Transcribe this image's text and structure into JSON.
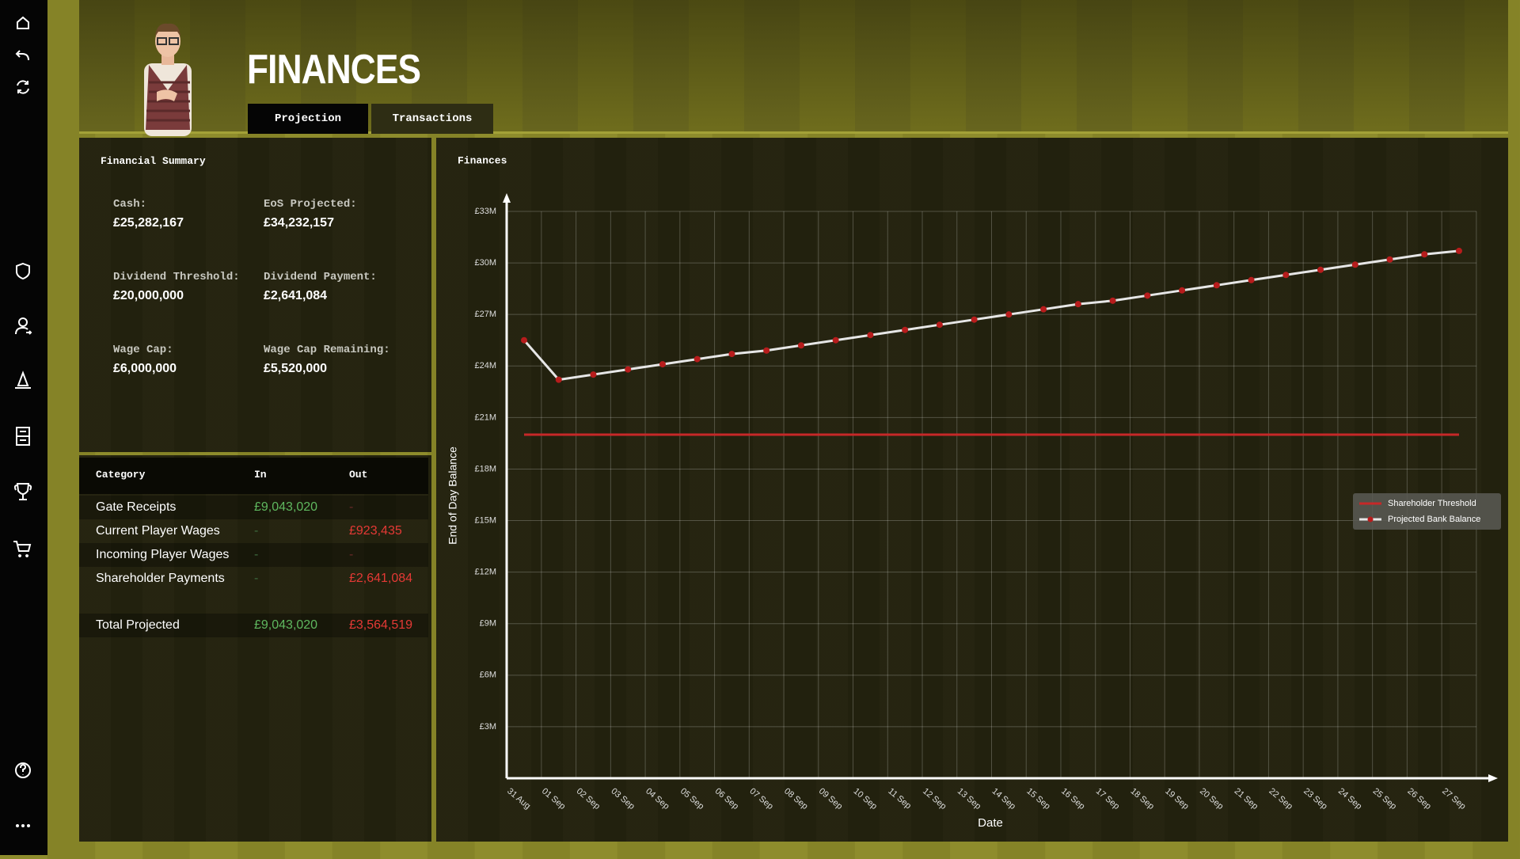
{
  "header": {
    "title": "FINANCES",
    "tabs": [
      "Projection",
      "Transactions"
    ]
  },
  "summary": {
    "title": "Financial Summary",
    "items": [
      {
        "label": "Cash:",
        "value": "£25,282,167"
      },
      {
        "label": "EoS Projected:",
        "value": "£34,232,157"
      },
      {
        "label": "Dividend Threshold:",
        "value": "£20,000,000"
      },
      {
        "label": "Dividend Payment:",
        "value": "£2,641,084"
      },
      {
        "label": "Wage Cap:",
        "value": "£6,000,000"
      },
      {
        "label": "Wage Cap Remaining:",
        "value": "£5,520,000"
      }
    ]
  },
  "table": {
    "columns": [
      "Category",
      "In",
      "Out"
    ],
    "rows": [
      [
        "Gate Receipts",
        "£9,043,020",
        "-"
      ],
      [
        "Current Player Wages",
        "-",
        "£923,435"
      ],
      [
        "Incoming Player Wages",
        "-",
        "-"
      ],
      [
        "Shareholder Payments",
        "-",
        "£2,641,084"
      ]
    ],
    "total": [
      "Total Projected",
      "£9,043,020",
      "£3,564,519"
    ]
  },
  "chart_data": {
    "type": "line",
    "title": "Finances",
    "x_label": "Date",
    "y_label": "End of Day Balance",
    "categories": [
      "31 Aug",
      "01 Sep",
      "02 Sep",
      "03 Sep",
      "04 Sep",
      "05 Sep",
      "06 Sep",
      "07 Sep",
      "08 Sep",
      "09 Sep",
      "10 Sep",
      "11 Sep",
      "12 Sep",
      "13 Sep",
      "14 Sep",
      "15 Sep",
      "16 Sep",
      "17 Sep",
      "18 Sep",
      "19 Sep",
      "20 Sep",
      "21 Sep",
      "22 Sep",
      "23 Sep",
      "24 Sep",
      "25 Sep",
      "26 Sep",
      "27 Sep"
    ],
    "series": [
      {
        "name": "Shareholder Threshold",
        "color": "#c62828",
        "values": [
          20,
          20,
          20,
          20,
          20,
          20,
          20,
          20,
          20,
          20,
          20,
          20,
          20,
          20,
          20,
          20,
          20,
          20,
          20,
          20,
          20,
          20,
          20,
          20,
          20,
          20,
          20,
          20
        ]
      },
      {
        "name": "Projected Bank Balance",
        "color": "#e6e6e6",
        "marker_color": "#b71c1c",
        "values": [
          25.5,
          23.2,
          23.5,
          23.8,
          24.1,
          24.4,
          24.7,
          24.9,
          25.2,
          25.5,
          25.8,
          26.1,
          26.4,
          26.7,
          27.0,
          27.3,
          27.6,
          27.8,
          28.1,
          28.4,
          28.7,
          29.0,
          29.3,
          29.6,
          29.9,
          30.2,
          30.5,
          30.7
        ]
      }
    ],
    "ylim": [
      0,
      33
    ],
    "yticks": [
      {
        "value": 3,
        "label": "£3M"
      },
      {
        "value": 6,
        "label": "£6M"
      },
      {
        "value": 9,
        "label": "£9M"
      },
      {
        "value": 12,
        "label": "£12M"
      },
      {
        "value": 15,
        "label": "£15M"
      },
      {
        "value": 18,
        "label": "£18M"
      },
      {
        "value": 21,
        "label": "£21M"
      },
      {
        "value": 24,
        "label": "£24M"
      },
      {
        "value": 27,
        "label": "£27M"
      },
      {
        "value": 30,
        "label": "£30M"
      },
      {
        "value": 33,
        "label": "£33M"
      }
    ],
    "grid": true,
    "legend": "right"
  }
}
